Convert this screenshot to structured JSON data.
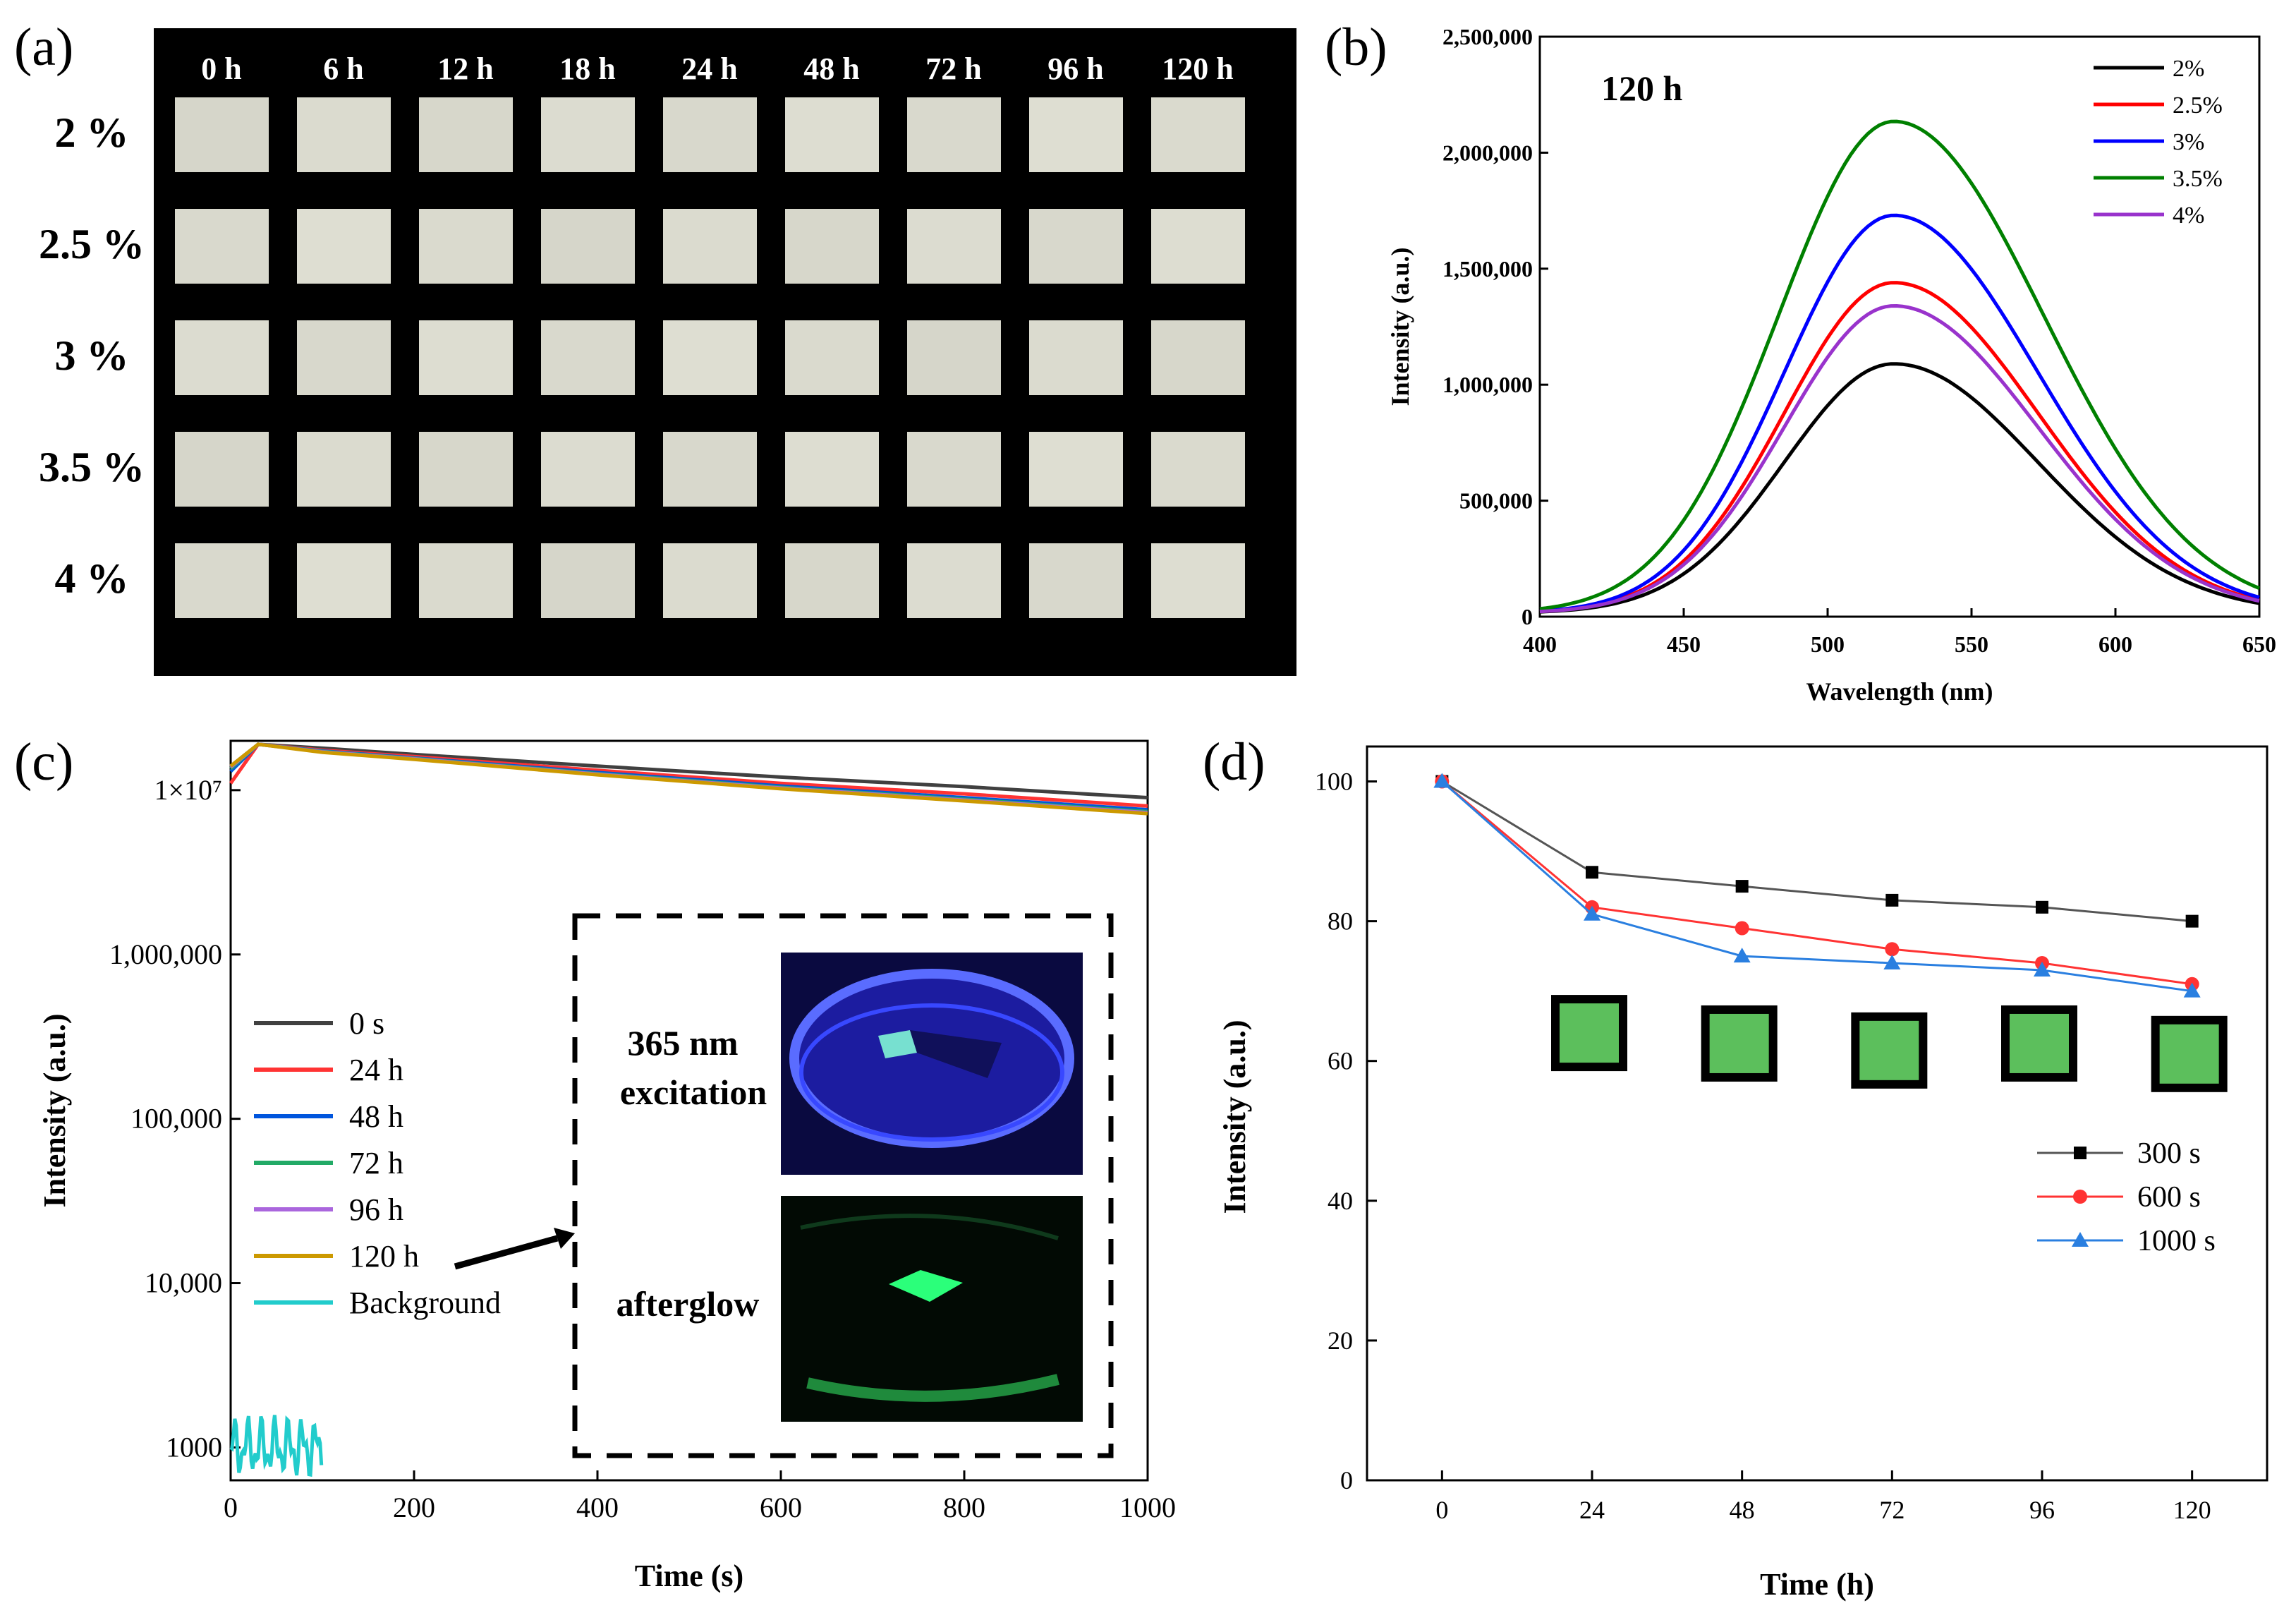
{
  "panel_labels": {
    "a": "(a)",
    "b": "(b)",
    "c": "(c)",
    "d": "(d)"
  },
  "panel_a": {
    "time_headers": [
      "0 h",
      "6 h",
      "12 h",
      "18 h",
      "24 h",
      "48 h",
      "72 h",
      "96 h",
      "120 h"
    ],
    "row_labels": [
      "2 %",
      "2.5 %",
      "3 %",
      "3.5 %",
      "4 %"
    ],
    "colors": {
      "background": "#000000",
      "swatch": "#dcdcd0"
    }
  },
  "chart_data": [
    {
      "id": "b",
      "type": "line",
      "annotation": "120 h",
      "xlabel": "Wavelength (nm)",
      "ylabel": "Intensity (a.u.)",
      "xlim": [
        400,
        650
      ],
      "ylim": [
        0,
        2500000
      ],
      "xticks": [
        400,
        450,
        500,
        550,
        600,
        650
      ],
      "xtick_labels": [
        "400",
        "450",
        "500",
        "550",
        "600",
        "650"
      ],
      "yticks": [
        0,
        500000,
        1000000,
        1500000,
        2000000,
        2500000
      ],
      "ytick_labels": [
        "0",
        "500,000",
        "1,000,000",
        "1,500,000",
        "2,000,000",
        "2,500,000"
      ],
      "peak_nm": 523,
      "legend_position": "top-right",
      "series": [
        {
          "name": "2%",
          "color": "#000000",
          "peak": 1090000,
          "baseline": 15000,
          "sigma_left": 38,
          "sigma_right": 50
        },
        {
          "name": "2.5%",
          "color": "#ff0000",
          "peak": 1440000,
          "baseline": 15000,
          "sigma_left": 38,
          "sigma_right": 50
        },
        {
          "name": "3%",
          "color": "#0000ff",
          "peak": 1730000,
          "baseline": 15000,
          "sigma_left": 38,
          "sigma_right": 50
        },
        {
          "name": "3.5%",
          "color": "#008000",
          "peak": 2135000,
          "baseline": 15000,
          "sigma_left": 40,
          "sigma_right": 52
        },
        {
          "name": "4%",
          "color": "#9933cc",
          "peak": 1340000,
          "baseline": 15000,
          "sigma_left": 38,
          "sigma_right": 50
        }
      ]
    },
    {
      "id": "c",
      "type": "line",
      "xlabel": "Time (s)",
      "ylabel": "Intensity (a.u.)",
      "xlim": [
        0,
        1000
      ],
      "ylim_log10": [
        2.8,
        7.3
      ],
      "yscale": "log",
      "xticks": [
        0,
        200,
        400,
        600,
        800,
        1000
      ],
      "xtick_labels": [
        "0",
        "200",
        "400",
        "600",
        "800",
        "1000"
      ],
      "yticks": [
        1000,
        10000,
        100000,
        1000000,
        10000000
      ],
      "ytick_labels": [
        "1000",
        "10,000",
        "100,000",
        "1,000,000",
        "1×10⁷"
      ],
      "legend_position": "lower-left",
      "series": [
        {
          "name": "0 s",
          "color": "#404040",
          "x": [
            0,
            30,
            100,
            200,
            400,
            600,
            800,
            1000
          ],
          "y": [
            14000000,
            19000000,
            18000000,
            16500000,
            14000000,
            12000000,
            10500000,
            9000000
          ]
        },
        {
          "name": "24 h",
          "color": "#ff3333",
          "x": [
            0,
            30,
            100,
            200,
            400,
            600,
            800,
            1000
          ],
          "y": [
            11000000,
            19000000,
            17500000,
            16000000,
            13200000,
            11000000,
            9500000,
            8000000
          ]
        },
        {
          "name": "48 h",
          "color": "#0055dd",
          "x": [
            0,
            30,
            100,
            200,
            400,
            600,
            800,
            1000
          ],
          "y": [
            13000000,
            19000000,
            17300000,
            15700000,
            12800000,
            10600000,
            9000000,
            7600000
          ]
        },
        {
          "name": "72 h",
          "color": "#22aa66",
          "x": [
            0,
            30,
            100,
            200,
            400,
            600,
            800,
            1000
          ],
          "y": [
            13500000,
            19000000,
            17200000,
            15600000,
            12600000,
            10400000,
            8800000,
            7400000
          ]
        },
        {
          "name": "96 h",
          "color": "#aa66dd",
          "x": [
            0,
            30,
            100,
            200,
            400,
            600,
            800,
            1000
          ],
          "y": [
            13800000,
            19000000,
            17100000,
            15500000,
            12500000,
            10300000,
            8700000,
            7300000
          ]
        },
        {
          "name": "120 h",
          "color": "#cc9900",
          "x": [
            0,
            30,
            100,
            200,
            400,
            600,
            800,
            1000
          ],
          "y": [
            14000000,
            19000000,
            17000000,
            15400000,
            12400000,
            10200000,
            8600000,
            7200000
          ]
        },
        {
          "name": "Background",
          "color": "#22cccc",
          "x_range": [
            0,
            100
          ],
          "level": 1000
        }
      ],
      "inset": {
        "label_excitation": "365 nm excitation",
        "label_excitation_line1": "365 nm",
        "label_excitation_line2": "excitation",
        "label_afterglow": "afterglow"
      }
    },
    {
      "id": "d",
      "type": "line",
      "xlabel": "Time (h)",
      "ylabel": "Intensity (a.u.)",
      "categories": [
        "0",
        "24",
        "48",
        "72",
        "96",
        "120"
      ],
      "x": [
        0,
        24,
        48,
        72,
        96,
        120
      ],
      "xlim": [
        -12,
        132
      ],
      "ylim": [
        0,
        105
      ],
      "yticks": [
        0,
        20,
        40,
        60,
        80,
        100
      ],
      "ytick_labels": [
        "0",
        "20",
        "40",
        "60",
        "80",
        "100"
      ],
      "legend_position": "lower-right",
      "series": [
        {
          "name": "300 s",
          "color": "#555555",
          "marker": "square",
          "values": [
            100,
            87,
            85,
            83,
            82,
            80
          ]
        },
        {
          "name": "600 s",
          "color": "#ff3333",
          "marker": "circle",
          "values": [
            100,
            82,
            79,
            76,
            74,
            71
          ]
        },
        {
          "name": "1000 s",
          "color": "#2a7fe0",
          "marker": "triangle",
          "values": [
            100,
            81,
            75,
            74,
            73,
            70
          ]
        }
      ],
      "swatch_color": "#5cbf5c"
    }
  ]
}
